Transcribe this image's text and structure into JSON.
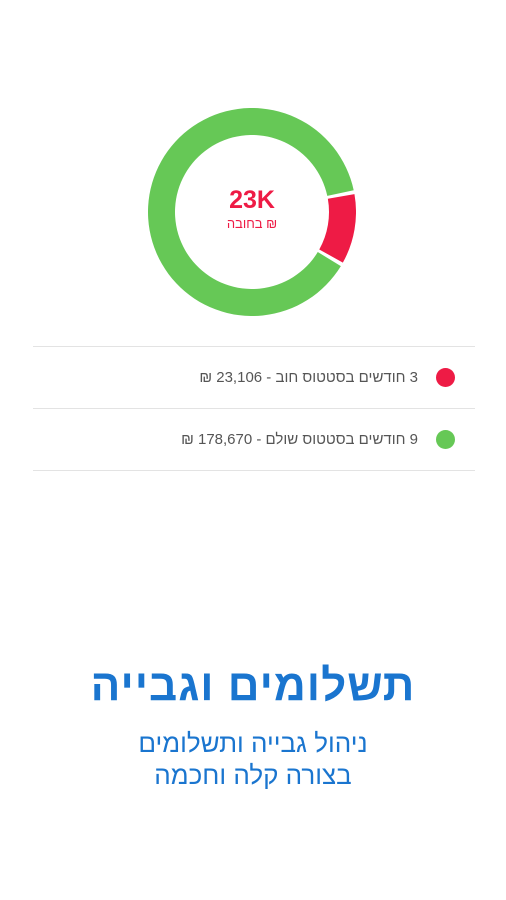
{
  "colors": {
    "debt": "#ee1b45",
    "paid": "#66c856",
    "accent_blue": "#1a75cf"
  },
  "chart_data": {
    "type": "pie",
    "style": "donut",
    "center_value": "23K",
    "center_caption": "₪ בחובה",
    "slices": [
      {
        "label": "3 חודשים בסטטוס חוב - 23,106 ₪",
        "months": 3,
        "amount": 23106,
        "color": "#ee1b45"
      },
      {
        "label": "9 חודשים בסטטוס שולם - 178,670 ₪",
        "months": 9,
        "amount": 178670,
        "color": "#66c856"
      }
    ],
    "legend_placement": "bottom"
  },
  "marketing": {
    "headline": "תשלומים וגבייה",
    "subline_1": "ניהול גבייה ותשלומים",
    "subline_2": "בצורה קלה וחכמה"
  }
}
